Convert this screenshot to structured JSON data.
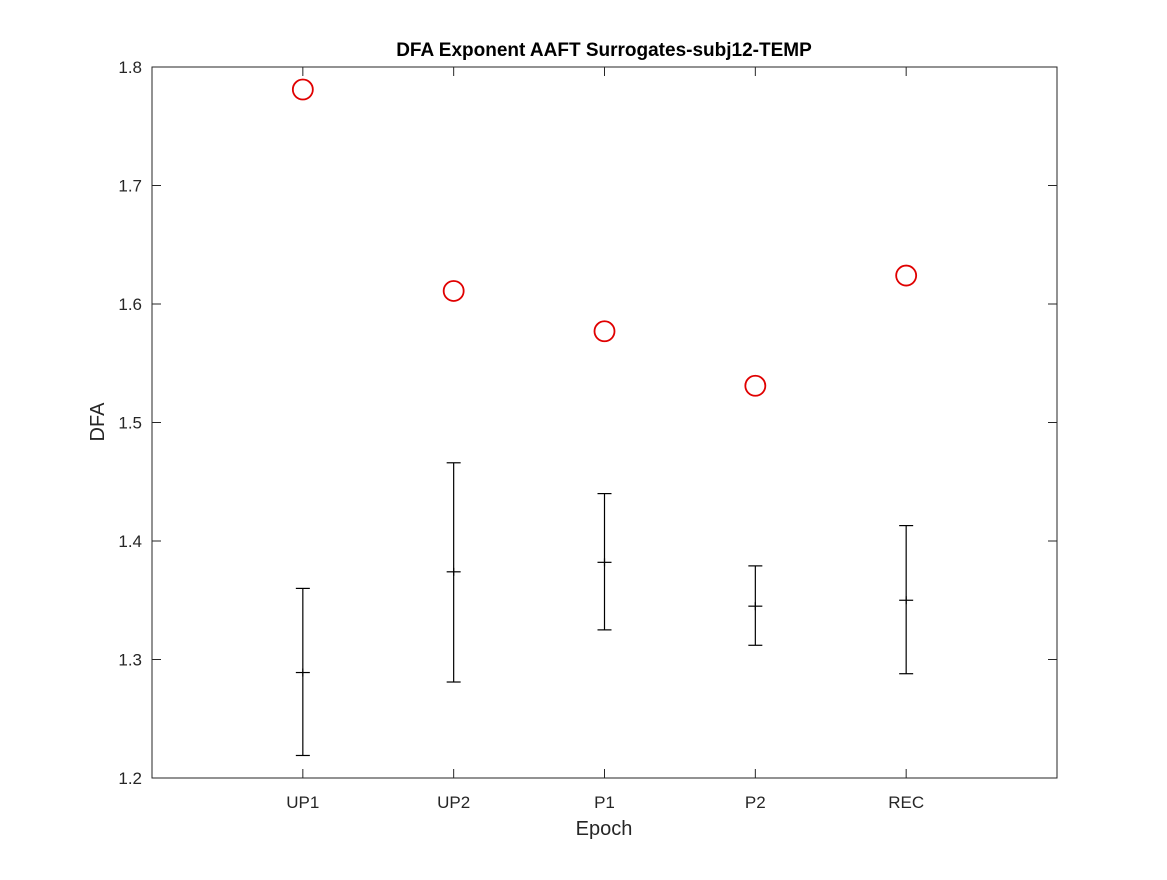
{
  "chart_data": {
    "type": "scatter",
    "title": "DFA Exponent AAFT Surrogates-subj12-TEMP",
    "xlabel": "Epoch",
    "ylabel": "DFA",
    "categories": [
      "UP1",
      "UP2",
      "P1",
      "P2",
      "REC"
    ],
    "xlim": [
      0,
      6
    ],
    "ylim": [
      1.2,
      1.8
    ],
    "yticks": [
      "1.2",
      "1.3",
      "1.4",
      "1.5",
      "1.6",
      "1.7",
      "1.8"
    ],
    "grid": false,
    "series": [
      {
        "marker": "circle",
        "color": "#e00000",
        "values": [
          1.781,
          1.611,
          1.577,
          1.531,
          1.624
        ]
      },
      {
        "marker": "errorbar",
        "color": "#000000",
        "mean": [
          1.289,
          1.374,
          1.382,
          1.345,
          1.35
        ],
        "lower": [
          1.219,
          1.281,
          1.325,
          1.312,
          1.288
        ],
        "upper": [
          1.36,
          1.466,
          1.44,
          1.379,
          1.413
        ]
      }
    ]
  }
}
